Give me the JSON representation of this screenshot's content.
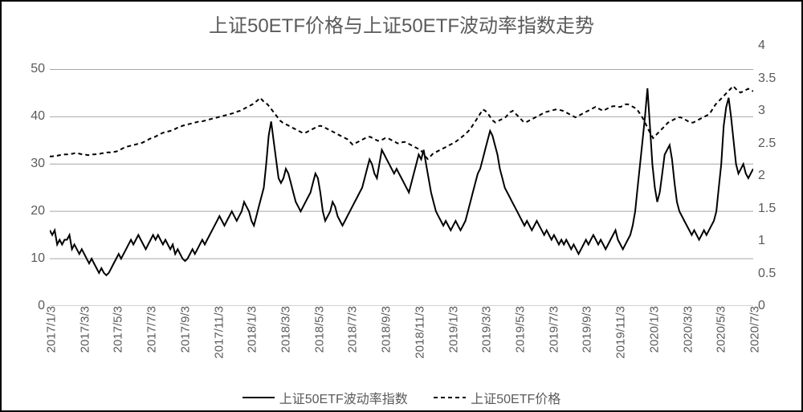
{
  "chart": {
    "type": "line-dual-axis",
    "title": "上证50ETF价格与上证50ETF波动率指数走势",
    "title_fontsize": 24,
    "title_color": "#5a5a5a",
    "background_color": "#ffffff",
    "border_color": "#000000",
    "grid_color": "#a6a6a6",
    "grid_width": 1,
    "axis_label_fontsize": 16,
    "axis_label_color": "#5a5a5a",
    "x_tick_rotation_deg": -90,
    "x_labels": [
      "2017/1/3",
      "2017/3/3",
      "2017/5/3",
      "2017/7/3",
      "2017/9/3",
      "2017/11/3",
      "2018/1/3",
      "2018/3/3",
      "2018/5/3",
      "2018/7/3",
      "2018/9/3",
      "2018/11/3",
      "2019/1/3",
      "2019/3/3",
      "2019/5/3",
      "2019/7/3",
      "2019/9/3",
      "2019/11/3",
      "2020/1/3",
      "2020/3/3",
      "2020/5/3",
      "2020/7/3"
    ],
    "left_axis": {
      "ylim": [
        0,
        55
      ],
      "ticks": [
        0,
        10,
        20,
        30,
        40,
        50
      ]
    },
    "right_axis": {
      "ylim": [
        0,
        4
      ],
      "ticks": [
        0,
        0.5,
        1,
        1.5,
        2,
        2.5,
        3,
        3.5,
        4
      ]
    },
    "series": [
      {
        "name": "上证50ETF波动率指数",
        "axis": "left",
        "color": "#000000",
        "line_width": 2,
        "dash": "solid",
        "data": [
          16,
          15,
          16,
          13,
          14,
          13,
          14,
          14,
          15,
          12,
          13,
          12,
          11,
          12,
          11,
          10,
          9,
          10,
          9,
          8,
          7,
          8,
          7,
          6.5,
          7,
          8,
          9,
          10,
          11,
          10,
          11,
          12,
          13,
          14,
          13,
          14,
          15,
          14,
          13,
          12,
          13,
          14,
          15,
          14,
          15,
          14,
          13,
          14,
          13,
          12,
          13,
          11,
          12,
          11,
          10,
          9.5,
          10,
          11,
          12,
          11,
          12,
          13,
          14,
          13,
          14,
          15,
          16,
          17,
          18,
          19,
          18,
          17,
          18,
          19,
          20,
          19,
          18,
          19,
          20,
          22,
          21,
          20,
          18,
          17,
          19,
          21,
          23,
          25,
          30,
          36,
          39,
          35,
          31,
          27,
          26,
          27,
          29,
          28,
          26,
          24,
          22,
          21,
          20,
          21,
          22,
          23,
          24,
          26,
          28,
          27,
          24,
          20,
          18,
          19,
          20,
          22,
          21,
          19,
          18,
          17,
          18,
          19,
          20,
          21,
          22,
          23,
          24,
          25,
          27,
          29,
          31,
          30,
          28,
          27,
          30,
          33,
          32,
          31,
          30,
          29,
          28,
          29,
          28,
          27,
          26,
          25,
          24,
          26,
          28,
          30,
          32,
          31,
          33,
          30,
          27,
          24,
          22,
          20,
          19,
          18,
          17,
          18,
          17,
          16,
          17,
          18,
          17,
          16,
          17,
          18,
          20,
          22,
          24,
          26,
          28,
          29,
          31,
          33,
          35,
          37,
          36,
          34,
          32,
          29,
          27,
          25,
          24,
          23,
          22,
          21,
          20,
          19,
          18,
          17,
          18,
          17,
          16,
          17,
          18,
          17,
          16,
          15,
          16,
          15,
          14,
          15,
          14,
          13,
          14,
          13,
          14,
          13,
          12,
          13,
          12,
          11,
          12,
          13,
          14,
          13,
          14,
          15,
          14,
          13,
          14,
          13,
          12,
          13,
          14,
          15,
          16,
          14,
          13,
          12,
          13,
          14,
          15,
          17,
          20,
          25,
          30,
          35,
          40,
          46,
          38,
          30,
          25,
          22,
          24,
          28,
          32,
          33,
          34,
          31,
          26,
          22,
          20,
          19,
          18,
          17,
          16,
          15,
          16,
          15,
          14,
          15,
          16,
          15,
          16,
          17,
          18,
          20,
          25,
          30,
          38,
          42,
          44,
          40,
          35,
          30,
          28,
          29,
          30,
          28,
          27,
          28,
          29
        ]
      },
      {
        "name": "上证50ETF价格",
        "axis": "right",
        "color": "#000000",
        "line_width": 2,
        "dash": "5,4",
        "data": [
          2.3,
          2.3,
          2.31,
          2.31,
          2.32,
          2.32,
          2.33,
          2.33,
          2.34,
          2.34,
          2.35,
          2.35,
          2.34,
          2.33,
          2.33,
          2.32,
          2.32,
          2.33,
          2.33,
          2.34,
          2.34,
          2.35,
          2.35,
          2.36,
          2.36,
          2.37,
          2.37,
          2.38,
          2.4,
          2.42,
          2.44,
          2.45,
          2.46,
          2.47,
          2.48,
          2.49,
          2.5,
          2.51,
          2.53,
          2.55,
          2.57,
          2.59,
          2.6,
          2.62,
          2.64,
          2.66,
          2.67,
          2.68,
          2.69,
          2.7,
          2.72,
          2.74,
          2.75,
          2.77,
          2.78,
          2.79,
          2.8,
          2.81,
          2.82,
          2.83,
          2.84,
          2.84,
          2.85,
          2.86,
          2.87,
          2.88,
          2.89,
          2.9,
          2.91,
          2.92,
          2.93,
          2.94,
          2.95,
          2.96,
          2.97,
          2.99,
          3.0,
          3.02,
          3.04,
          3.06,
          3.08,
          3.1,
          3.13,
          3.16,
          3.2,
          3.16,
          3.12,
          3.1,
          3.05,
          3.0,
          2.95,
          2.9,
          2.85,
          2.82,
          2.8,
          2.78,
          2.76,
          2.74,
          2.72,
          2.7,
          2.68,
          2.66,
          2.66,
          2.68,
          2.7,
          2.72,
          2.74,
          2.76,
          2.77,
          2.76,
          2.74,
          2.72,
          2.7,
          2.68,
          2.66,
          2.64,
          2.62,
          2.6,
          2.58,
          2.56,
          2.52,
          2.48,
          2.5,
          2.52,
          2.54,
          2.56,
          2.58,
          2.6,
          2.6,
          2.58,
          2.56,
          2.54,
          2.54,
          2.56,
          2.58,
          2.58,
          2.56,
          2.54,
          2.52,
          2.5,
          2.5,
          2.52,
          2.52,
          2.5,
          2.48,
          2.46,
          2.44,
          2.42,
          2.4,
          2.36,
          2.3,
          2.26,
          2.3,
          2.34,
          2.36,
          2.38,
          2.4,
          2.42,
          2.44,
          2.46,
          2.48,
          2.5,
          2.52,
          2.55,
          2.58,
          2.61,
          2.64,
          2.68,
          2.72,
          2.78,
          2.84,
          2.9,
          2.96,
          3.02,
          3.0,
          2.96,
          2.9,
          2.85,
          2.82,
          2.84,
          2.86,
          2.88,
          2.9,
          2.94,
          2.98,
          3.0,
          2.96,
          2.92,
          2.88,
          2.84,
          2.82,
          2.84,
          2.86,
          2.88,
          2.9,
          2.92,
          2.94,
          2.96,
          2.98,
          2.99,
          3.0,
          3.01,
          3.02,
          3.02,
          3.01,
          3.0,
          2.98,
          2.96,
          2.94,
          2.92,
          2.9,
          2.92,
          2.94,
          2.96,
          2.98,
          3.0,
          3.02,
          3.04,
          3.06,
          3.04,
          3.02,
          3.0,
          3.02,
          3.04,
          3.06,
          3.07,
          3.07,
          3.06,
          3.06,
          3.08,
          3.1,
          3.1,
          3.08,
          3.06,
          3.04,
          3.0,
          2.94,
          2.88,
          2.8,
          2.72,
          2.65,
          2.58,
          2.62,
          2.66,
          2.7,
          2.74,
          2.78,
          2.82,
          2.84,
          2.86,
          2.88,
          2.9,
          2.9,
          2.88,
          2.86,
          2.84,
          2.82,
          2.82,
          2.84,
          2.86,
          2.88,
          2.9,
          2.92,
          2.94,
          2.98,
          3.04,
          3.1,
          3.14,
          3.18,
          3.22,
          3.26,
          3.3,
          3.34,
          3.38,
          3.34,
          3.3,
          3.28,
          3.3,
          3.32,
          3.34,
          3.32,
          3.3
        ]
      }
    ],
    "legend": {
      "position": "bottom",
      "fontsize": 16,
      "items": [
        {
          "label": "上证50ETF波动率指数",
          "sample": "solid"
        },
        {
          "label": "上证50ETF价格",
          "sample": "dash"
        }
      ]
    }
  }
}
